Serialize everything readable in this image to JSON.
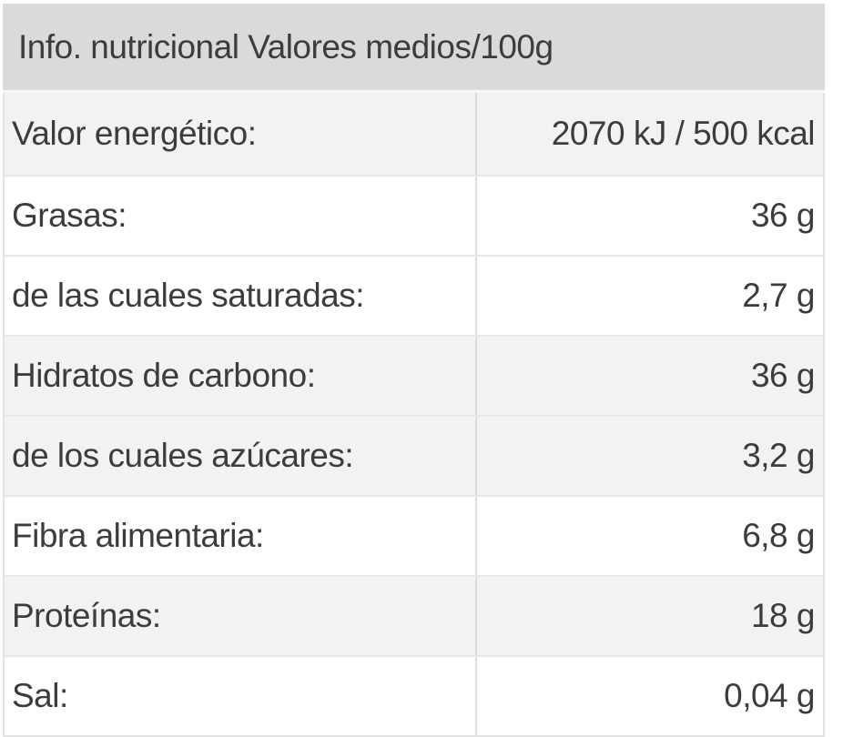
{
  "table": {
    "title": "Info. nutricional Valores medios/100g",
    "rows": [
      {
        "label": "Valor energético:",
        "value": "2070 kJ / 500 kcal",
        "shaded": true
      },
      {
        "label": "Grasas:",
        "value": "36 g",
        "shaded": false
      },
      {
        "label": "de las cuales saturadas:",
        "value": "2,7 g",
        "shaded": false
      },
      {
        "label": "Hidratos de carbono:",
        "value": "36 g",
        "shaded": true
      },
      {
        "label": "de los cuales azúcares:",
        "value": "3,2 g",
        "shaded": true
      },
      {
        "label": "Fibra alimentaria:",
        "value": "6,8 g",
        "shaded": false
      },
      {
        "label": "Proteínas:",
        "value": "18 g",
        "shaded": true
      },
      {
        "label": "Sal:",
        "value": "0,04 g",
        "shaded": false
      }
    ],
    "colors": {
      "header_bg": "#dadada",
      "shaded_row_bg": "#f2f2f2",
      "plain_row_bg": "#ffffff",
      "row_border": "#e8e8e8",
      "column_divider": "#dcdcdc",
      "text": "#3c3c3c"
    }
  }
}
